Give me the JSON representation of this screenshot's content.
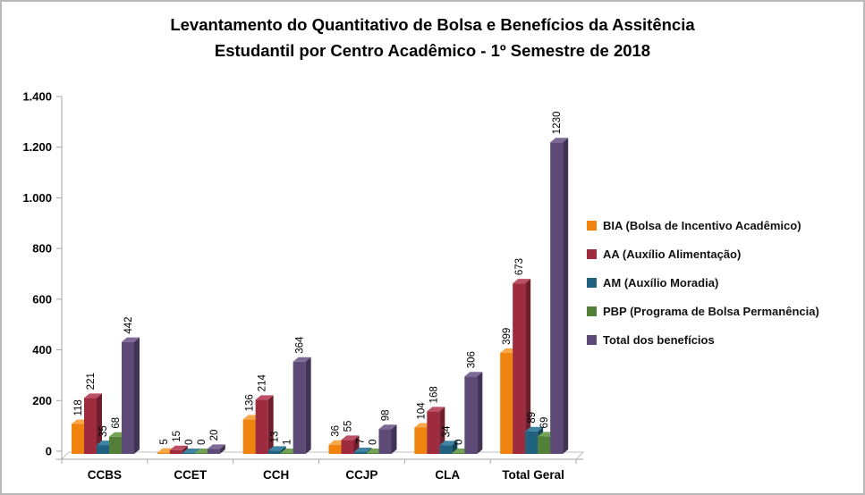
{
  "window": {
    "background": "#FFFFFF",
    "border_color": "#B9B9B9"
  },
  "chart_data": {
    "type": "bar",
    "projection": "3d",
    "title": "Levantamento do Quantitativo de Bolsa e Benefícios da Assitência Estudantil  por Centro Acadêmico - 1º Semestre de 2018",
    "title_lines": [
      "Levantamento do Quantitativo de Bolsa e Benefícios da Assitência",
      "Estudantil  por Centro Acadêmico - 1º Semestre de 2018"
    ],
    "categories": [
      "CCBS",
      "CCET",
      "CCH",
      "CCJP",
      "CLA",
      "Total Geral"
    ],
    "series": [
      {
        "name": "BIA (Bolsa de Incentivo Acadêmico)",
        "color": "#EF830D",
        "color_dark": "#A65A06",
        "color_light": "#F8A749",
        "values": [
          118,
          5,
          136,
          36,
          104,
          399
        ]
      },
      {
        "name": "AA (Auxílio Alimentação)",
        "color": "#9E2B3E",
        "color_dark": "#6F1E2C",
        "color_light": "#BB5065",
        "values": [
          221,
          15,
          214,
          55,
          168,
          673
        ]
      },
      {
        "name": "AM (Auxílio Moradia)",
        "color": "#20617F",
        "color_dark": "#154458",
        "color_light": "#4084A4",
        "values": [
          35,
          0,
          13,
          7,
          34,
          89
        ]
      },
      {
        "name": "PBP (Programa de Bolsa Permanência)",
        "color": "#528039",
        "color_dark": "#395A26",
        "color_light": "#73A355",
        "values": [
          68,
          0,
          1,
          0,
          0,
          69
        ]
      },
      {
        "name": "Total dos benefícios",
        "color": "#5D4A76",
        "color_dark": "#413353",
        "color_light": "#7D6A97",
        "values": [
          442,
          20,
          364,
          98,
          306,
          1230
        ]
      }
    ],
    "y_axis": {
      "min": 0,
      "max": 1400,
      "step": 200,
      "tick_labels": [
        "0",
        "200",
        "400",
        "600",
        "800",
        "1.000",
        "1.200",
        "1.400"
      ]
    },
    "xlabel": "",
    "ylabel": "",
    "grid": false,
    "legend_position": "right-middle",
    "data_labels": {
      "rotation": -90,
      "position": "above-bar"
    },
    "axis_color": "#A6A6A6",
    "floor_edge_color": "#C0C0C0"
  }
}
